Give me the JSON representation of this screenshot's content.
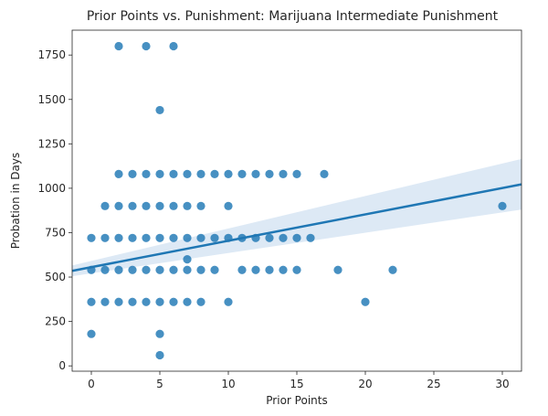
{
  "chart_data": {
    "type": "scatter",
    "title": "Prior Points vs. Punishment: Marijuana Intermediate Punishment",
    "xlabel": "Prior Points",
    "ylabel": "Probation in Days",
    "xlim": [
      -1.4,
      31.4
    ],
    "ylim": [
      -30,
      1890
    ],
    "x_ticks": [
      0,
      5,
      10,
      15,
      20,
      25,
      30
    ],
    "x_tick_labels": [
      "0",
      "5",
      "10",
      "15",
      "20",
      "25",
      "30"
    ],
    "y_ticks": [
      0,
      250,
      500,
      750,
      1000,
      1250,
      1500,
      1750
    ],
    "y_tick_labels": [
      "0",
      "250",
      "500",
      "750",
      "1000",
      "1250",
      "1500",
      "1750"
    ],
    "grid": false,
    "point_color": "#1f77b4",
    "line_color": "#1f77b4",
    "band_color": "#c6dbef",
    "regression": {
      "x": [
        -1.4,
        31.4
      ],
      "y": [
        535,
        1022
      ],
      "ci_lower": [
        505,
        880
      ],
      "ci_upper": [
        565,
        1165
      ]
    },
    "points": [
      [
        0,
        180
      ],
      [
        0,
        360
      ],
      [
        0,
        540
      ],
      [
        0,
        720
      ],
      [
        1,
        360
      ],
      [
        1,
        540
      ],
      [
        1,
        720
      ],
      [
        1,
        900
      ],
      [
        2,
        360
      ],
      [
        2,
        540
      ],
      [
        2,
        720
      ],
      [
        2,
        900
      ],
      [
        2,
        1080
      ],
      [
        2,
        1800
      ],
      [
        3,
        360
      ],
      [
        3,
        540
      ],
      [
        3,
        720
      ],
      [
        3,
        900
      ],
      [
        3,
        1080
      ],
      [
        4,
        360
      ],
      [
        4,
        540
      ],
      [
        4,
        720
      ],
      [
        4,
        900
      ],
      [
        4,
        1080
      ],
      [
        4,
        1800
      ],
      [
        5,
        60
      ],
      [
        5,
        180
      ],
      [
        5,
        360
      ],
      [
        5,
        540
      ],
      [
        5,
        720
      ],
      [
        5,
        900
      ],
      [
        5,
        1080
      ],
      [
        5,
        1440
      ],
      [
        6,
        360
      ],
      [
        6,
        540
      ],
      [
        6,
        720
      ],
      [
        6,
        900
      ],
      [
        6,
        1080
      ],
      [
        6,
        1800
      ],
      [
        7,
        360
      ],
      [
        7,
        540
      ],
      [
        7,
        600
      ],
      [
        7,
        720
      ],
      [
        7,
        900
      ],
      [
        7,
        1080
      ],
      [
        8,
        360
      ],
      [
        8,
        540
      ],
      [
        8,
        720
      ],
      [
        8,
        900
      ],
      [
        8,
        1080
      ],
      [
        9,
        540
      ],
      [
        9,
        720
      ],
      [
        9,
        1080
      ],
      [
        10,
        360
      ],
      [
        10,
        720
      ],
      [
        10,
        900
      ],
      [
        10,
        1080
      ],
      [
        11,
        540
      ],
      [
        11,
        720
      ],
      [
        11,
        1080
      ],
      [
        12,
        540
      ],
      [
        12,
        720
      ],
      [
        12,
        1080
      ],
      [
        13,
        540
      ],
      [
        13,
        720
      ],
      [
        13,
        1080
      ],
      [
        14,
        540
      ],
      [
        14,
        720
      ],
      [
        14,
        1080
      ],
      [
        15,
        540
      ],
      [
        15,
        720
      ],
      [
        15,
        1080
      ],
      [
        16,
        720
      ],
      [
        17,
        1080
      ],
      [
        18,
        540
      ],
      [
        20,
        360
      ],
      [
        22,
        540
      ],
      [
        30,
        900
      ]
    ]
  }
}
